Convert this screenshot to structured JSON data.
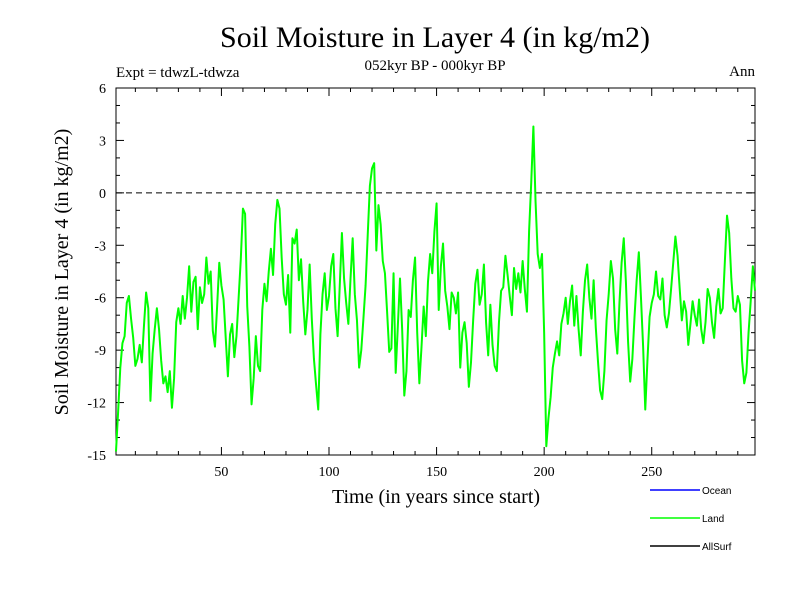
{
  "chart_data": {
    "type": "line",
    "title": "Soil Moisture in Layer 4 (in kg/m2)",
    "subtitle": "052kyr BP - 000kyr BP",
    "experiment_label": "Expt = tdwzL-tdwza",
    "season_label": "Ann",
    "xlabel": "Time (in years since start)",
    "ylabel": "Soil Moisture in Layer 4 (in kg/m2)",
    "xlim": [
      1,
      298
    ],
    "ylim": [
      -15,
      6
    ],
    "x_ticks": [
      50,
      100,
      150,
      200,
      250
    ],
    "y_ticks": [
      6,
      3,
      0,
      -3,
      -6,
      -9,
      -12,
      -15
    ],
    "reference_line": 0,
    "grid": false,
    "legend_position": "bottom-right",
    "legend": [
      {
        "name": "Ocean",
        "color": "#0000ff"
      },
      {
        "name": "Land",
        "color": "#00ff00"
      },
      {
        "name": "AllSurf",
        "color": "#000000"
      }
    ],
    "series": [
      {
        "name": "Land",
        "color": "#00ff00",
        "points": [
          [
            1,
            -14.8
          ],
          [
            2,
            -12.5
          ],
          [
            3,
            -10.0
          ],
          [
            4,
            -8.6
          ],
          [
            5,
            -8.2
          ],
          [
            6,
            -6.3
          ],
          [
            7,
            -5.9
          ],
          [
            8,
            -7.2
          ],
          [
            9,
            -8.3
          ],
          [
            10,
            -9.9
          ],
          [
            11,
            -9.5
          ],
          [
            12,
            -8.7
          ],
          [
            13,
            -9.7
          ],
          [
            14,
            -7.6
          ],
          [
            15,
            -5.7
          ],
          [
            16,
            -6.6
          ],
          [
            17,
            -11.9
          ],
          [
            18,
            -9.2
          ],
          [
            19,
            -7.8
          ],
          [
            20,
            -6.6
          ],
          [
            21,
            -7.8
          ],
          [
            22,
            -9.6
          ],
          [
            23,
            -10.9
          ],
          [
            24,
            -10.5
          ],
          [
            25,
            -11.4
          ],
          [
            26,
            -10.2
          ],
          [
            27,
            -12.3
          ],
          [
            28,
            -10.6
          ],
          [
            29,
            -7.4
          ],
          [
            30,
            -6.6
          ],
          [
            31,
            -7.5
          ],
          [
            32,
            -5.9
          ],
          [
            33,
            -7.2
          ],
          [
            34,
            -6.0
          ],
          [
            35,
            -4.2
          ],
          [
            36,
            -6.8
          ],
          [
            37,
            -5.1
          ],
          [
            38,
            -4.8
          ],
          [
            39,
            -7.8
          ],
          [
            40,
            -5.4
          ],
          [
            41,
            -6.3
          ],
          [
            42,
            -5.8
          ],
          [
            43,
            -3.7
          ],
          [
            44,
            -5.2
          ],
          [
            45,
            -4.5
          ],
          [
            46,
            -7.9
          ],
          [
            47,
            -8.8
          ],
          [
            48,
            -6.5
          ],
          [
            49,
            -4.0
          ],
          [
            50,
            -5.3
          ],
          [
            51,
            -6.1
          ],
          [
            52,
            -8.3
          ],
          [
            53,
            -10.5
          ],
          [
            54,
            -8.1
          ],
          [
            55,
            -7.5
          ],
          [
            56,
            -9.4
          ],
          [
            57,
            -8.2
          ],
          [
            58,
            -6.0
          ],
          [
            59,
            -3.8
          ],
          [
            60,
            -0.9
          ],
          [
            61,
            -1.2
          ],
          [
            62,
            -6.5
          ],
          [
            63,
            -8.8
          ],
          [
            64,
            -12.1
          ],
          [
            65,
            -10.6
          ],
          [
            66,
            -8.2
          ],
          [
            67,
            -9.9
          ],
          [
            68,
            -10.2
          ],
          [
            69,
            -6.7
          ],
          [
            70,
            -5.2
          ],
          [
            71,
            -6.2
          ],
          [
            72,
            -4.5
          ],
          [
            73,
            -3.2
          ],
          [
            74,
            -4.7
          ],
          [
            75,
            -1.8
          ],
          [
            76,
            -0.4
          ],
          [
            77,
            -0.9
          ],
          [
            78,
            -3.7
          ],
          [
            79,
            -5.8
          ],
          [
            80,
            -6.4
          ],
          [
            81,
            -4.7
          ],
          [
            82,
            -8.0
          ],
          [
            83,
            -2.6
          ],
          [
            84,
            -2.9
          ],
          [
            85,
            -2.1
          ],
          [
            86,
            -5.0
          ],
          [
            87,
            -3.8
          ],
          [
            88,
            -6.2
          ],
          [
            89,
            -8.1
          ],
          [
            90,
            -6.7
          ],
          [
            91,
            -4.1
          ],
          [
            92,
            -7.2
          ],
          [
            93,
            -9.5
          ],
          [
            94,
            -11.0
          ],
          [
            95,
            -12.4
          ],
          [
            96,
            -8.1
          ],
          [
            97,
            -5.8
          ],
          [
            98,
            -4.6
          ],
          [
            99,
            -6.7
          ],
          [
            100,
            -5.9
          ],
          [
            101,
            -4.2
          ],
          [
            102,
            -3.5
          ],
          [
            103,
            -6.6
          ],
          [
            104,
            -8.2
          ],
          [
            105,
            -5.3
          ],
          [
            106,
            -2.3
          ],
          [
            107,
            -4.9
          ],
          [
            108,
            -6.3
          ],
          [
            109,
            -7.5
          ],
          [
            110,
            -4.9
          ],
          [
            111,
            -2.6
          ],
          [
            112,
            -5.8
          ],
          [
            113,
            -7.3
          ],
          [
            114,
            -10.0
          ],
          [
            115,
            -9.0
          ],
          [
            116,
            -7.2
          ],
          [
            117,
            -5.3
          ],
          [
            118,
            -2.4
          ],
          [
            119,
            0.4
          ],
          [
            120,
            1.4
          ],
          [
            121,
            1.7
          ],
          [
            122,
            -3.3
          ],
          [
            123,
            -0.7
          ],
          [
            124,
            -1.8
          ],
          [
            125,
            -3.9
          ],
          [
            126,
            -4.6
          ],
          [
            127,
            -6.8
          ],
          [
            128,
            -9.1
          ],
          [
            129,
            -8.9
          ],
          [
            130,
            -4.6
          ],
          [
            131,
            -10.3
          ],
          [
            132,
            -7.6
          ],
          [
            133,
            -4.9
          ],
          [
            134,
            -7.8
          ],
          [
            135,
            -11.6
          ],
          [
            136,
            -10.2
          ],
          [
            137,
            -6.7
          ],
          [
            138,
            -7.1
          ],
          [
            139,
            -5.0
          ],
          [
            140,
            -3.7
          ],
          [
            141,
            -8.0
          ],
          [
            142,
            -10.9
          ],
          [
            143,
            -8.8
          ],
          [
            144,
            -6.5
          ],
          [
            145,
            -8.2
          ],
          [
            146,
            -5.1
          ],
          [
            147,
            -3.5
          ],
          [
            148,
            -4.6
          ],
          [
            149,
            -2.2
          ],
          [
            150,
            -0.6
          ],
          [
            151,
            -6.7
          ],
          [
            152,
            -4.2
          ],
          [
            153,
            -2.9
          ],
          [
            154,
            -5.6
          ],
          [
            155,
            -6.5
          ],
          [
            156,
            -7.8
          ],
          [
            157,
            -5.7
          ],
          [
            158,
            -6.0
          ],
          [
            159,
            -6.9
          ],
          [
            160,
            -5.7
          ],
          [
            161,
            -10.0
          ],
          [
            162,
            -8.0
          ],
          [
            163,
            -7.4
          ],
          [
            164,
            -8.6
          ],
          [
            165,
            -11.1
          ],
          [
            166,
            -9.7
          ],
          [
            167,
            -7.3
          ],
          [
            168,
            -5.2
          ],
          [
            169,
            -4.4
          ],
          [
            170,
            -6.4
          ],
          [
            171,
            -5.8
          ],
          [
            172,
            -4.1
          ],
          [
            173,
            -7.4
          ],
          [
            174,
            -9.3
          ],
          [
            175,
            -6.4
          ],
          [
            176,
            -8.7
          ],
          [
            177,
            -9.9
          ],
          [
            178,
            -10.2
          ],
          [
            179,
            -7.4
          ],
          [
            180,
            -5.6
          ],
          [
            181,
            -5.4
          ],
          [
            182,
            -3.6
          ],
          [
            183,
            -4.7
          ],
          [
            184,
            -5.9
          ],
          [
            185,
            -7.0
          ],
          [
            186,
            -4.3
          ],
          [
            187,
            -5.5
          ],
          [
            188,
            -4.6
          ],
          [
            189,
            -5.7
          ],
          [
            190,
            -3.9
          ],
          [
            191,
            -5.5
          ],
          [
            192,
            -6.8
          ],
          [
            193,
            -2.2
          ],
          [
            194,
            0.6
          ],
          [
            195,
            3.8
          ],
          [
            196,
            -0.5
          ],
          [
            197,
            -3.5
          ],
          [
            198,
            -4.3
          ],
          [
            199,
            -3.5
          ],
          [
            200,
            -8.0
          ],
          [
            201,
            -14.5
          ],
          [
            202,
            -12.9
          ],
          [
            203,
            -11.7
          ],
          [
            204,
            -10.0
          ],
          [
            205,
            -9.2
          ],
          [
            206,
            -8.5
          ],
          [
            207,
            -9.3
          ],
          [
            208,
            -7.5
          ],
          [
            209,
            -6.9
          ],
          [
            210,
            -6.0
          ],
          [
            211,
            -7.5
          ],
          [
            212,
            -6.2
          ],
          [
            213,
            -5.3
          ],
          [
            214,
            -7.6
          ],
          [
            215,
            -5.9
          ],
          [
            216,
            -7.8
          ],
          [
            217,
            -9.3
          ],
          [
            218,
            -6.8
          ],
          [
            219,
            -5.0
          ],
          [
            220,
            -4.1
          ],
          [
            221,
            -6.0
          ],
          [
            222,
            -7.2
          ],
          [
            223,
            -5.0
          ],
          [
            224,
            -7.7
          ],
          [
            225,
            -9.6
          ],
          [
            226,
            -11.3
          ],
          [
            227,
            -11.8
          ],
          [
            228,
            -10.2
          ],
          [
            229,
            -7.3
          ],
          [
            230,
            -5.8
          ],
          [
            231,
            -3.9
          ],
          [
            232,
            -4.9
          ],
          [
            233,
            -7.8
          ],
          [
            234,
            -9.2
          ],
          [
            235,
            -6.3
          ],
          [
            236,
            -4.0
          ],
          [
            237,
            -2.6
          ],
          [
            238,
            -5.1
          ],
          [
            239,
            -8.5
          ],
          [
            240,
            -10.8
          ],
          [
            241,
            -9.5
          ],
          [
            242,
            -7.1
          ],
          [
            243,
            -5.0
          ],
          [
            244,
            -3.4
          ],
          [
            245,
            -6.0
          ],
          [
            246,
            -8.8
          ],
          [
            247,
            -12.4
          ],
          [
            248,
            -9.6
          ],
          [
            249,
            -7.1
          ],
          [
            250,
            -6.3
          ],
          [
            251,
            -5.8
          ],
          [
            252,
            -4.5
          ],
          [
            253,
            -5.9
          ],
          [
            254,
            -6.1
          ],
          [
            255,
            -4.9
          ],
          [
            256,
            -7.0
          ],
          [
            257,
            -7.7
          ],
          [
            258,
            -6.9
          ],
          [
            259,
            -5.5
          ],
          [
            260,
            -4.0
          ],
          [
            261,
            -2.5
          ],
          [
            262,
            -3.6
          ],
          [
            263,
            -5.5
          ],
          [
            264,
            -7.3
          ],
          [
            265,
            -6.2
          ],
          [
            266,
            -6.8
          ],
          [
            267,
            -8.7
          ],
          [
            268,
            -7.5
          ],
          [
            269,
            -6.2
          ],
          [
            270,
            -7.0
          ],
          [
            271,
            -7.6
          ],
          [
            272,
            -6.1
          ],
          [
            273,
            -7.8
          ],
          [
            274,
            -8.6
          ],
          [
            275,
            -7.4
          ],
          [
            276,
            -5.5
          ],
          [
            277,
            -6.0
          ],
          [
            278,
            -7.4
          ],
          [
            279,
            -8.3
          ],
          [
            280,
            -6.5
          ],
          [
            281,
            -5.5
          ],
          [
            282,
            -6.9
          ],
          [
            283,
            -6.6
          ],
          [
            284,
            -3.9
          ],
          [
            285,
            -1.3
          ],
          [
            286,
            -2.3
          ],
          [
            287,
            -4.9
          ],
          [
            288,
            -6.6
          ],
          [
            289,
            -6.8
          ],
          [
            290,
            -5.9
          ],
          [
            291,
            -6.4
          ],
          [
            292,
            -9.6
          ],
          [
            293,
            -10.9
          ],
          [
            294,
            -10.3
          ],
          [
            295,
            -8.0
          ],
          [
            296,
            -6.2
          ],
          [
            297,
            -4.2
          ],
          [
            298,
            -5.6
          ]
        ]
      }
    ]
  }
}
